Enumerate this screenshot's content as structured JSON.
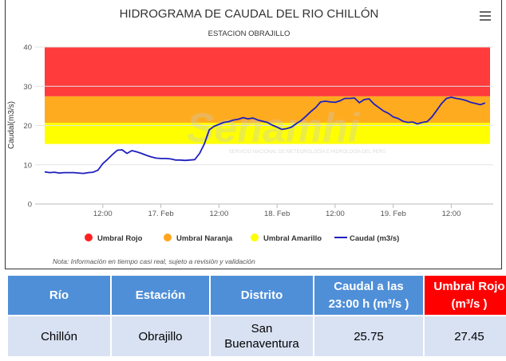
{
  "top_header": "",
  "chart_data": {
    "type": "line",
    "title": "HIDROGRAMA DE CAUDAL DEL RIO CHILLÓN",
    "subtitle": "ESTACION OBRAJILLO",
    "ylabel": "Caudal(m3/s)",
    "ylim": [
      0,
      40
    ],
    "yticks": [
      "0",
      "10",
      "20",
      "30",
      "40"
    ],
    "x_tick_labels": [
      "12:00",
      "17. Feb",
      "12:00",
      "18. Feb",
      "12:00",
      "19. Feb",
      "12:00"
    ],
    "x_tick_hours": [
      12,
      24,
      36,
      48,
      60,
      72,
      84
    ],
    "xlim_hours": [
      0,
      92
    ],
    "bands": [
      {
        "name": "Umbral Amarillo",
        "from": 15.3,
        "to": 20.7,
        "color": "#ffff00"
      },
      {
        "name": "Umbral Naranja",
        "from": 20.7,
        "to": 27.45,
        "color": "#ffab1f"
      },
      {
        "name": "Umbral Rojo",
        "from": 27.45,
        "to": 40,
        "color": "#ff3b3b"
      }
    ],
    "series": [
      {
        "name": "Caudal (m3/s)",
        "color": "#1f1fbf",
        "x": [
          0,
          1,
          2,
          3,
          4,
          5,
          6,
          7,
          8,
          9,
          10,
          11,
          12,
          13,
          14,
          15,
          16,
          17,
          18,
          19,
          20,
          21,
          22,
          23,
          24,
          25,
          26,
          27,
          28,
          29,
          30,
          31,
          32,
          33,
          34,
          35,
          36,
          37,
          38,
          39,
          40,
          41,
          42,
          43,
          44,
          45,
          46,
          47,
          48,
          49,
          50,
          51,
          52,
          53,
          54,
          55,
          56,
          57,
          58,
          59,
          60,
          61,
          62,
          63,
          64,
          65,
          66,
          67,
          68,
          69,
          70,
          71,
          72,
          73,
          74,
          75,
          76,
          77,
          78,
          79,
          80,
          81,
          82,
          83,
          84,
          85,
          86,
          87,
          88,
          89,
          90,
          91
        ],
        "values": [
          8.2,
          8.0,
          8.1,
          7.9,
          8.0,
          8.0,
          8.0,
          7.9,
          7.8,
          8.0,
          8.1,
          8.6,
          10.3,
          11.4,
          12.6,
          13.7,
          13.8,
          12.9,
          13.6,
          13.3,
          12.9,
          12.4,
          12.0,
          11.7,
          11.6,
          11.6,
          11.5,
          11.2,
          11.2,
          11.1,
          11.2,
          11.3,
          12.9,
          15.4,
          18.9,
          19.8,
          20.3,
          20.8,
          21.0,
          21.4,
          21.6,
          22.0,
          21.7,
          21.9,
          21.4,
          21.1,
          20.8,
          20.1,
          19.6,
          19.0,
          19.2,
          19.6,
          20.5,
          21.3,
          22.4,
          23.6,
          24.6,
          26.0,
          26.2,
          26.0,
          25.9,
          26.3,
          26.9,
          26.9,
          27.0,
          25.8,
          26.6,
          26.8,
          25.5,
          24.6,
          23.7,
          23.1,
          22.2,
          21.8,
          21.1,
          20.8,
          20.9,
          20.4,
          20.8,
          21.0,
          22.2,
          23.9,
          25.6,
          26.9,
          27.2,
          26.9,
          26.7,
          26.4,
          25.9,
          25.6,
          25.3,
          25.75
        ]
      }
    ],
    "legend": [
      {
        "label": "Umbral Rojo",
        "color": "#ff2020",
        "kind": "dot"
      },
      {
        "label": "Umbral Naranja",
        "color": "#ffa61f",
        "kind": "dot"
      },
      {
        "label": "Umbral Amarillo",
        "color": "#ffff00",
        "kind": "dot"
      },
      {
        "label": "Caudal (m3/s)",
        "color": "#1f1fbf",
        "kind": "line"
      }
    ],
    "legend_position": "bottom",
    "grid": "horizontal",
    "note": "Nota: Información en tiempo casi real, sujeto a revisión y validación",
    "watermark_title": "Senamhi",
    "watermark_sub": "SERVICIO NACIONAL DE METEOROLOGÍA E HIDROLOGÍA DEL PERÚ"
  },
  "table": {
    "headers": [
      "Río",
      "Estación",
      "Distrito",
      "Caudal a las 23:00 h (m³/s )",
      "Umbral Rojo (m³/s )"
    ],
    "row": [
      "Chillón",
      "Obrajillo",
      "San Buenaventura",
      "25.75",
      "27.45"
    ]
  },
  "colors": {
    "header_blue": "#4f8fd8",
    "header_red": "#ff0000",
    "row_bg": "#d9e2f3"
  }
}
